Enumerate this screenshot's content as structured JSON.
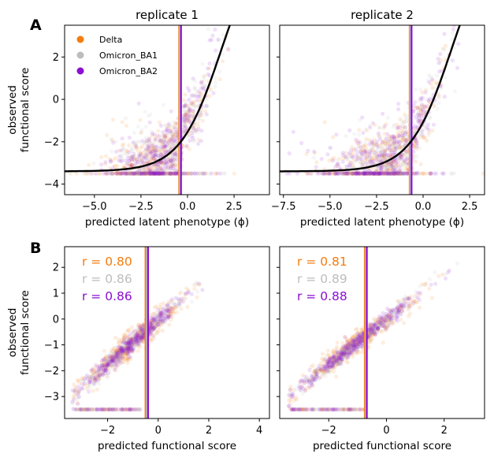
{
  "panel_labels": [
    "A",
    "B"
  ],
  "colors": {
    "Delta": "#f57c0f",
    "Omicron_BA1": "#bdbdbd",
    "Omicron_BA2": "#8a0fd0",
    "fit": "#000000"
  },
  "legend": [
    {
      "label": "Delta",
      "color": "#f57c0f"
    },
    {
      "label": "Omicron_BA1",
      "color": "#bdbdbd"
    },
    {
      "label": "Omicron_BA2",
      "color": "#8a0fd0"
    }
  ],
  "chart_data": [
    {
      "id": "A1",
      "type": "scatter",
      "title": "replicate 1",
      "xlabel": "predicted latent phenotype (ϕ)",
      "ylabel": [
        "observed",
        "functional score"
      ],
      "xlim": [
        -6.6,
        4.4
      ],
      "ylim": [
        -4.5,
        3.5
      ],
      "xticks": [
        -5.0,
        -2.5,
        0.0,
        2.5
      ],
      "xticklabels": [
        "−5.0",
        "−2.5",
        "0.0",
        "2.5"
      ],
      "yticks": [
        -4,
        -2,
        0,
        2
      ],
      "yticklabels": [
        "−4",
        "−2",
        "0",
        "2"
      ],
      "floor": -3.5,
      "vlines": [
        {
          "x": -0.45,
          "color": "#f57c0f"
        },
        {
          "x": -0.42,
          "color": "#bdbdbd"
        },
        {
          "x": -0.35,
          "color": "#8a0fd0"
        }
      ],
      "curve": {
        "lower": -3.4,
        "upper": 8.0,
        "midpoint": 1.8,
        "scale": 1.1
      },
      "series": [
        {
          "name": "Delta",
          "color": "#f57c0f",
          "center": [
            -1.5,
            -1.3
          ],
          "spread": [
            2.2,
            1.5
          ]
        },
        {
          "name": "Omicron_BA1",
          "color": "#bdbdbd",
          "center": [
            -1.2,
            -1.0
          ],
          "spread": [
            2.0,
            1.5
          ]
        },
        {
          "name": "Omicron_BA2",
          "color": "#8a0fd0",
          "center": [
            -1.3,
            -1.2
          ],
          "spread": [
            2.1,
            1.5
          ]
        }
      ]
    },
    {
      "id": "A2",
      "type": "scatter",
      "title": "replicate 2",
      "xlabel": "predicted latent phenotype (ϕ)",
      "xlim": [
        -7.7,
        3.3
      ],
      "ylim": [
        -4.5,
        3.5
      ],
      "xticks": [
        -7.5,
        -5.0,
        -2.5,
        0.0,
        2.5
      ],
      "xticklabels": [
        "−7.5",
        "−5.0",
        "−2.5",
        "0.0",
        "2.5"
      ],
      "yticks": [
        -4,
        -2,
        0,
        2
      ],
      "floor": -3.5,
      "vlines": [
        {
          "x": -0.72,
          "color": "#f57c0f"
        },
        {
          "x": -0.69,
          "color": "#bdbdbd"
        },
        {
          "x": -0.62,
          "color": "#8a0fd0"
        }
      ],
      "curve": {
        "lower": -3.4,
        "upper": 8.0,
        "midpoint": 1.5,
        "scale": 1.1
      },
      "series": [
        {
          "name": "Delta",
          "color": "#f57c0f",
          "center": [
            -2.0,
            -1.3
          ],
          "spread": [
            2.3,
            1.5
          ]
        },
        {
          "name": "Omicron_BA1",
          "color": "#bdbdbd",
          "center": [
            -1.8,
            -1.0
          ],
          "spread": [
            2.1,
            1.5
          ]
        },
        {
          "name": "Omicron_BA2",
          "color": "#8a0fd0",
          "center": [
            -1.9,
            -1.2
          ],
          "spread": [
            2.2,
            1.5
          ]
        }
      ]
    },
    {
      "id": "B1",
      "type": "scatter",
      "xlabel": "predicted functional score",
      "ylabel": [
        "observed",
        "functional score"
      ],
      "xlim": [
        -3.7,
        4.4
      ],
      "ylim": [
        -3.85,
        2.8
      ],
      "xticks": [
        -2,
        0,
        2,
        4
      ],
      "xticklabels": [
        "−2",
        "0",
        "2",
        "4"
      ],
      "yticks": [
        -3,
        -2,
        -1,
        0,
        1,
        2
      ],
      "yticklabels": [
        "−3",
        "−2",
        "−1",
        "0",
        "1",
        "2"
      ],
      "floor": -3.5,
      "vlines": [
        {
          "x": -0.5,
          "color": "#f57c0f"
        },
        {
          "x": -0.45,
          "color": "#bdbdbd"
        },
        {
          "x": -0.4,
          "color": "#8a0fd0"
        }
      ],
      "correlations": [
        {
          "label": "r = 0.80",
          "color": "#f57c0f"
        },
        {
          "label": "r = 0.86",
          "color": "#bdbdbd"
        },
        {
          "label": "r = 0.86",
          "color": "#8a0fd0"
        }
      ],
      "series": [
        {
          "name": "Delta",
          "color": "#f57c0f",
          "r": 0.8
        },
        {
          "name": "Omicron_BA1",
          "color": "#bdbdbd",
          "r": 0.86
        },
        {
          "name": "Omicron_BA2",
          "color": "#8a0fd0",
          "r": 0.86
        }
      ]
    },
    {
      "id": "B2",
      "type": "scatter",
      "xlabel": "predicted functional score",
      "xlim": [
        -3.7,
        3.4
      ],
      "ylim": [
        -3.85,
        2.8
      ],
      "xticks": [
        -2,
        0,
        2
      ],
      "xticklabels": [
        "−2",
        "0",
        "2"
      ],
      "yticks": [
        -3,
        -2,
        -1,
        0,
        1,
        2
      ],
      "floor": -3.5,
      "vlines": [
        {
          "x": -0.75,
          "color": "#f57c0f"
        },
        {
          "x": -0.72,
          "color": "#bdbdbd"
        },
        {
          "x": -0.68,
          "color": "#8a0fd0"
        }
      ],
      "correlations": [
        {
          "label": "r = 0.81",
          "color": "#f57c0f"
        },
        {
          "label": "r = 0.89",
          "color": "#bdbdbd"
        },
        {
          "label": "r = 0.88",
          "color": "#8a0fd0"
        }
      ],
      "series": [
        {
          "name": "Delta",
          "color": "#f57c0f",
          "r": 0.81
        },
        {
          "name": "Omicron_BA1",
          "color": "#bdbdbd",
          "r": 0.89
        },
        {
          "name": "Omicron_BA2",
          "color": "#8a0fd0",
          "r": 0.88
        }
      ]
    }
  ]
}
